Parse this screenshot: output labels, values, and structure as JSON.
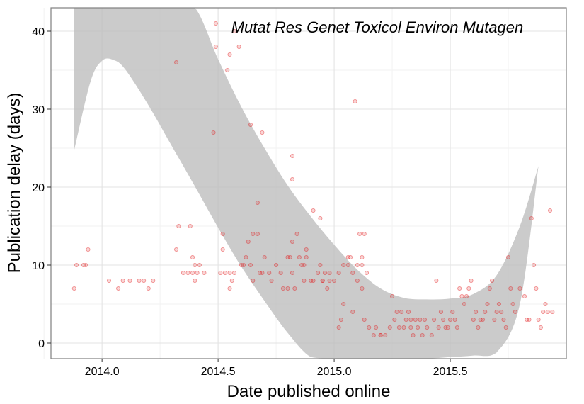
{
  "chart_data": {
    "type": "scatter",
    "title": "",
    "annotation": "Mutat Res Genet Toxicol Environ Mutagen",
    "xlabel": "Date published online",
    "ylabel": "Publication delay (days)",
    "xlim": [
      2013.78,
      2016.0
    ],
    "ylim": [
      -2,
      43
    ],
    "xticks": [
      2014.0,
      2014.5,
      2015.0,
      2015.5
    ],
    "xtick_labels": [
      "2014.0",
      "2014.5",
      "2015.0",
      "2015.5"
    ],
    "yticks": [
      0,
      10,
      20,
      30,
      40
    ],
    "ytick_labels": [
      "0",
      "10",
      "20",
      "30",
      "40"
    ],
    "grid": true,
    "point_color": "#e31a1c",
    "band_color": "#b8b8b8",
    "smooth_fit": {
      "x": [
        2013.88,
        2013.95,
        2014.0,
        2014.05,
        2014.1,
        2014.2,
        2014.3,
        2014.4,
        2014.5,
        2014.6,
        2014.7,
        2014.8,
        2014.9,
        2015.0,
        2015.1,
        2015.2,
        2015.3,
        2015.4,
        2015.5,
        2015.6,
        2015.7,
        2015.8,
        2015.88
      ],
      "lower": [
        24.7,
        33.5,
        36.2,
        36.3,
        35.1,
        30.5,
        25.3,
        20.1,
        14.8,
        9.8,
        5.4,
        1.3,
        -1.8,
        -3.2,
        -3.6,
        -3.4,
        -2.9,
        -2.3,
        -1.8,
        -1.6,
        -1.2,
        5.0,
        22.7
      ],
      "upper": [
        46.0,
        46.0,
        46.0,
        46.0,
        46.0,
        46.0,
        46.0,
        44.0,
        36.4,
        30.3,
        25.0,
        20.2,
        16.2,
        12.6,
        9.4,
        7.0,
        5.8,
        5.6,
        5.7,
        6.3,
        8.7,
        15.0,
        22.7
      ]
    },
    "points": [
      [
        2013.88,
        7
      ],
      [
        2013.89,
        10
      ],
      [
        2013.92,
        10
      ],
      [
        2013.93,
        10
      ],
      [
        2013.94,
        12
      ],
      [
        2014.03,
        8
      ],
      [
        2014.07,
        7
      ],
      [
        2014.09,
        8
      ],
      [
        2014.12,
        8
      ],
      [
        2014.16,
        8
      ],
      [
        2014.18,
        8
      ],
      [
        2014.2,
        7
      ],
      [
        2014.22,
        8
      ],
      [
        2014.32,
        12
      ],
      [
        2014.33,
        15
      ],
      [
        2014.35,
        9
      ],
      [
        2014.37,
        9
      ],
      [
        2014.38,
        15
      ],
      [
        2014.39,
        11
      ],
      [
        2014.39,
        9
      ],
      [
        2014.4,
        10
      ],
      [
        2014.4,
        8
      ],
      [
        2014.41,
        9
      ],
      [
        2014.42,
        10
      ],
      [
        2014.44,
        9
      ],
      [
        2014.51,
        9
      ],
      [
        2014.52,
        12
      ],
      [
        2014.52,
        14
      ],
      [
        2014.53,
        9
      ],
      [
        2014.55,
        9
      ],
      [
        2014.55,
        7
      ],
      [
        2014.56,
        8
      ],
      [
        2014.57,
        9
      ],
      [
        2014.6,
        10
      ],
      [
        2014.61,
        10
      ],
      [
        2014.62,
        11
      ],
      [
        2014.63,
        13
      ],
      [
        2014.64,
        10
      ],
      [
        2014.65,
        14
      ],
      [
        2014.65,
        8
      ],
      [
        2014.67,
        14
      ],
      [
        2014.68,
        9
      ],
      [
        2014.69,
        9
      ],
      [
        2014.7,
        11
      ],
      [
        2014.72,
        9
      ],
      [
        2014.73,
        8
      ],
      [
        2014.75,
        10
      ],
      [
        2014.77,
        9
      ],
      [
        2014.78,
        7
      ],
      [
        2014.8,
        11
      ],
      [
        2014.8,
        7
      ],
      [
        2014.82,
        9
      ],
      [
        2014.83,
        7
      ],
      [
        2014.87,
        8
      ],
      [
        2014.88,
        11
      ],
      [
        2014.9,
        8
      ],
      [
        2014.91,
        8
      ],
      [
        2014.93,
        9
      ],
      [
        2014.94,
        10
      ],
      [
        2014.95,
        8
      ],
      [
        2014.98,
        9
      ],
      [
        2015.0,
        8
      ],
      [
        2015.02,
        9
      ],
      [
        2015.04,
        10
      ],
      [
        2015.06,
        11
      ],
      [
        2015.07,
        11
      ],
      [
        2015.08,
        9
      ],
      [
        2015.1,
        8
      ],
      [
        2015.12,
        10
      ],
      [
        2015.14,
        9
      ],
      [
        2014.32,
        36
      ],
      [
        2014.48,
        27
      ],
      [
        2014.49,
        38
      ],
      [
        2014.49,
        41
      ],
      [
        2014.54,
        35
      ],
      [
        2014.55,
        37
      ],
      [
        2014.57,
        40
      ],
      [
        2014.59,
        38
      ],
      [
        2014.64,
        28
      ],
      [
        2014.67,
        18
      ],
      [
        2014.69,
        27
      ],
      [
        2014.82,
        21
      ],
      [
        2014.82,
        24
      ],
      [
        2014.81,
        11
      ],
      [
        2014.82,
        13
      ],
      [
        2014.84,
        14
      ],
      [
        2014.85,
        11
      ],
      [
        2014.86,
        10
      ],
      [
        2014.87,
        10
      ],
      [
        2014.88,
        12
      ],
      [
        2014.91,
        17
      ],
      [
        2014.94,
        16
      ],
      [
        2014.95,
        8
      ],
      [
        2014.96,
        9
      ],
      [
        2014.97,
        7
      ],
      [
        2014.98,
        8
      ],
      [
        2015.02,
        2
      ],
      [
        2015.03,
        3
      ],
      [
        2015.04,
        5
      ],
      [
        2015.06,
        10
      ],
      [
        2015.08,
        4
      ],
      [
        2015.09,
        31
      ],
      [
        2015.1,
        10
      ],
      [
        2015.11,
        14
      ],
      [
        2015.12,
        11
      ],
      [
        2015.12,
        7
      ],
      [
        2015.13,
        14
      ],
      [
        2015.13,
        3
      ],
      [
        2015.15,
        2
      ],
      [
        2015.17,
        1
      ],
      [
        2015.18,
        2
      ],
      [
        2015.2,
        1
      ],
      [
        2015.22,
        1
      ],
      [
        2015.24,
        2
      ],
      [
        2015.25,
        6
      ],
      [
        2015.26,
        3
      ],
      [
        2015.28,
        2
      ],
      [
        2015.29,
        4
      ],
      [
        2015.3,
        2
      ],
      [
        2015.31,
        3
      ],
      [
        2015.32,
        4
      ],
      [
        2015.33,
        2
      ],
      [
        2015.34,
        1
      ],
      [
        2015.35,
        3
      ],
      [
        2015.36,
        2
      ],
      [
        2015.37,
        3
      ],
      [
        2015.38,
        1
      ],
      [
        2015.39,
        3
      ],
      [
        2015.4,
        2
      ],
      [
        2015.42,
        1
      ],
      [
        2015.44,
        8
      ],
      [
        2015.45,
        2
      ],
      [
        2015.46,
        4
      ],
      [
        2015.47,
        3
      ],
      [
        2015.48,
        2
      ],
      [
        2015.49,
        2
      ],
      [
        2015.5,
        3
      ],
      [
        2015.51,
        4
      ],
      [
        2015.52,
        3
      ],
      [
        2015.54,
        7
      ],
      [
        2015.55,
        6
      ],
      [
        2015.56,
        5
      ],
      [
        2015.57,
        6
      ],
      [
        2015.58,
        7
      ],
      [
        2015.59,
        8
      ],
      [
        2015.6,
        3
      ],
      [
        2015.61,
        4
      ],
      [
        2015.62,
        2
      ],
      [
        2015.64,
        3
      ],
      [
        2015.65,
        4
      ],
      [
        2015.66,
        5
      ],
      [
        2015.67,
        7
      ],
      [
        2015.68,
        8
      ],
      [
        2015.69,
        3
      ],
      [
        2015.7,
        4
      ],
      [
        2015.71,
        5
      ],
      [
        2015.72,
        4
      ],
      [
        2015.73,
        3
      ],
      [
        2015.75,
        11
      ],
      [
        2015.76,
        7
      ],
      [
        2015.77,
        5
      ],
      [
        2015.78,
        4
      ],
      [
        2015.8,
        7
      ],
      [
        2015.82,
        6
      ],
      [
        2015.83,
        3
      ],
      [
        2015.85,
        16
      ],
      [
        2015.86,
        10
      ],
      [
        2015.87,
        7
      ],
      [
        2015.88,
        3
      ],
      [
        2015.9,
        4
      ],
      [
        2015.91,
        5
      ],
      [
        2015.92,
        4
      ],
      [
        2015.93,
        17
      ],
      [
        2015.94,
        4
      ],
      [
        2015.2,
        1
      ],
      [
        2015.27,
        4
      ],
      [
        2015.33,
        3
      ],
      [
        2015.43,
        3
      ],
      [
        2015.53,
        2
      ],
      [
        2015.63,
        3
      ],
      [
        2015.74,
        2
      ],
      [
        2015.84,
        3
      ],
      [
        2015.89,
        2
      ]
    ]
  }
}
